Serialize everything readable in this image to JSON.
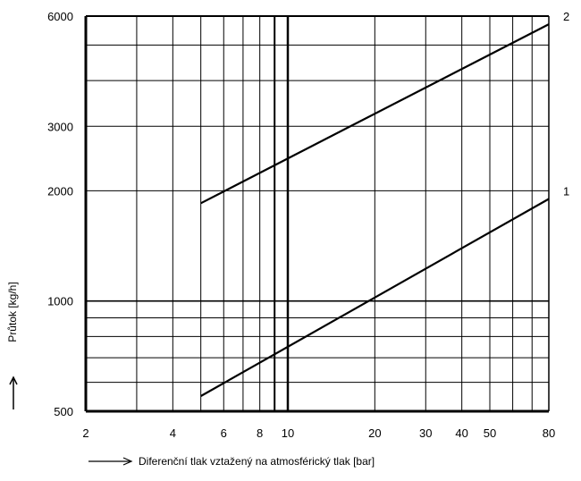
{
  "chart_data": {
    "type": "line",
    "xscale": "log",
    "yscale": "log",
    "xlim": [
      2,
      80
    ],
    "ylim": [
      500,
      6000
    ],
    "grid": true,
    "xlabel": "Diferenční tlak vztažený na atmosférický tlak [bar]",
    "ylabel": "Průtok [kg/h]",
    "x_ticks": [
      2,
      4,
      6,
      8,
      10,
      20,
      30,
      40,
      50,
      80
    ],
    "x_tick_labels": [
      "2",
      "4",
      "6",
      "8",
      "10",
      "20",
      "30",
      "40",
      "50",
      "80"
    ],
    "y_ticks": [
      500,
      1000,
      2000,
      3000,
      6000
    ],
    "y_tick_labels": [
      "500",
      "1000",
      "2000",
      "3000",
      "6000"
    ],
    "series": [
      {
        "name": "1",
        "x": [
          5,
          80
        ],
        "y": [
          550,
          1900
        ]
      },
      {
        "name": "2",
        "x": [
          5,
          80
        ],
        "y": [
          1850,
          5700
        ]
      }
    ]
  }
}
